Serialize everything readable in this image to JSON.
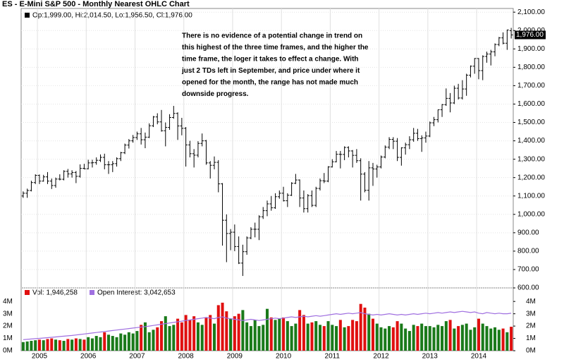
{
  "chart_data": [
    {
      "type": "ohlc",
      "title": "ES - E-Mini S&P 500 - Monthly Nearest OHLC Chart",
      "legend_label": "Op:1,999.00, Hi:2,014.50, Lo:1,956.50, Cl:1,976.00",
      "last_label": "1,976.00",
      "annotation": [
        "There is no evidence of a potential change in trend on",
        "this highest of the three time frames, and the higher the",
        "time frame, the loger it takes to effect a change.  With",
        "just 2 TDs left in September, and price under where it",
        "opened for the month, the range has not made much",
        "downside progress."
      ],
      "color": "#000000",
      "grid": true,
      "categories": [
        null,
        null,
        null,
        null,
        "2005",
        null,
        null,
        null,
        null,
        null,
        null,
        null,
        null,
        null,
        null,
        null,
        "2006",
        null,
        null,
        null,
        null,
        null,
        null,
        null,
        null,
        null,
        null,
        null,
        "2007",
        null,
        null,
        null,
        null,
        null,
        null,
        null,
        null,
        null,
        null,
        null,
        "2008",
        null,
        null,
        null,
        null,
        null,
        null,
        null,
        null,
        null,
        null,
        null,
        "2009",
        null,
        null,
        null,
        null,
        null,
        null,
        null,
        null,
        null,
        null,
        null,
        "2010",
        null,
        null,
        null,
        null,
        null,
        null,
        null,
        null,
        null,
        null,
        null,
        "2011",
        null,
        null,
        null,
        null,
        null,
        null,
        null,
        null,
        null,
        null,
        null,
        "2012",
        null,
        null,
        null,
        null,
        null,
        null,
        null,
        null,
        null,
        null,
        null,
        "2013",
        null,
        null,
        null,
        null,
        null,
        null,
        null,
        null,
        null,
        null,
        null,
        "2014",
        null,
        null,
        null,
        null,
        null,
        null,
        null,
        null
      ],
      "open": [
        1100,
        1115,
        1130,
        1173,
        1212,
        1181,
        1204,
        1181,
        1157,
        1192,
        1191,
        1234,
        1220,
        1228,
        1207,
        1250,
        1248,
        1280,
        1281,
        1294,
        1310,
        1270,
        1270,
        1276,
        1303,
        1335,
        1377,
        1400,
        1418,
        1438,
        1406,
        1420,
        1482,
        1530,
        1503,
        1455,
        1473,
        1527,
        1549,
        1481,
        1468,
        1378,
        1330,
        1322,
        1386,
        1400,
        1280,
        1267,
        1283,
        1166,
        968,
        896,
        903,
        825,
        735,
        797,
        872,
        919,
        919,
        987,
        1020,
        1057,
        1036,
        1096,
        1115,
        1074,
        1104,
        1169,
        1187,
        1089,
        1031,
        1102,
        1049,
        1141,
        1183,
        1181,
        1258,
        1286,
        1327,
        1326,
        1364,
        1345,
        1321,
        1292,
        1219,
        1131,
        1253,
        1247,
        1258,
        1312,
        1366,
        1408,
        1398,
        1310,
        1362,
        1379,
        1406,
        1441,
        1412,
        1416,
        1426,
        1498,
        1515,
        1569,
        1597,
        1631,
        1606,
        1686,
        1633,
        1682,
        1757,
        1806,
        1848,
        1782,
        1859,
        1872,
        1884,
        1924,
        1960,
        1931,
        1999
      ],
      "high": [
        1125,
        1140,
        1183,
        1218,
        1217,
        1215,
        1230,
        1195,
        1200,
        1218,
        1240,
        1247,
        1240,
        1236,
        1272,
        1275,
        1297,
        1297,
        1310,
        1326,
        1330,
        1290,
        1290,
        1310,
        1340,
        1385,
        1410,
        1432,
        1450,
        1470,
        1445,
        1495,
        1535,
        1550,
        1568,
        1500,
        1545,
        1590,
        1555,
        1525,
        1475,
        1400,
        1355,
        1398,
        1440,
        1405,
        1290,
        1315,
        1295,
        1170,
        1000,
        920,
        945,
        880,
        835,
        880,
        930,
        955,
        995,
        1040,
        1075,
        1100,
        1115,
        1130,
        1150,
        1115,
        1175,
        1220,
        1190,
        1130,
        1110,
        1130,
        1150,
        1195,
        1225,
        1262,
        1300,
        1345,
        1345,
        1370,
        1370,
        1350,
        1355,
        1305,
        1230,
        1290,
        1280,
        1270,
        1320,
        1375,
        1420,
        1420,
        1415,
        1365,
        1390,
        1425,
        1470,
        1465,
        1430,
        1450,
        1505,
        1530,
        1570,
        1600,
        1685,
        1660,
        1700,
        1710,
        1730,
        1765,
        1810,
        1850,
        1850,
        1865,
        1885,
        1895,
        1930,
        1965,
        1990,
        2005,
        2014.5
      ],
      "low": [
        1090,
        1090,
        1125,
        1165,
        1165,
        1178,
        1165,
        1138,
        1145,
        1185,
        1185,
        1200,
        1200,
        1170,
        1200,
        1245,
        1245,
        1255,
        1270,
        1285,
        1245,
        1220,
        1230,
        1260,
        1290,
        1328,
        1358,
        1390,
        1405,
        1380,
        1360,
        1415,
        1475,
        1490,
        1450,
        1370,
        1460,
        1520,
        1405,
        1430,
        1260,
        1310,
        1255,
        1310,
        1370,
        1270,
        1195,
        1245,
        1120,
        830,
        740,
        805,
        800,
        730,
        665,
        780,
        865,
        875,
        860,
        975,
        990,
        1020,
        1030,
        1085,
        1070,
        1040,
        1100,
        1165,
        1040,
        1010,
        1010,
        1040,
        1040,
        1130,
        1170,
        1175,
        1255,
        1283,
        1250,
        1295,
        1310,
        1255,
        1280,
        1075,
        1120,
        1075,
        1155,
        1200,
        1250,
        1305,
        1355,
        1355,
        1290,
        1265,
        1325,
        1355,
        1395,
        1400,
        1340,
        1390,
        1420,
        1480,
        1500,
        1530,
        1590,
        1555,
        1600,
        1625,
        1625,
        1645,
        1745,
        1765,
        1735,
        1730,
        1825,
        1810,
        1860,
        1915,
        1925,
        1895,
        1956.5
      ],
      "close": [
        1115,
        1130,
        1173,
        1212,
        1181,
        1204,
        1181,
        1157,
        1192,
        1191,
        1234,
        1220,
        1228,
        1207,
        1250,
        1248,
        1280,
        1281,
        1294,
        1310,
        1270,
        1270,
        1276,
        1303,
        1335,
        1377,
        1400,
        1418,
        1438,
        1406,
        1420,
        1482,
        1530,
        1503,
        1455,
        1473,
        1527,
        1549,
        1481,
        1468,
        1378,
        1330,
        1322,
        1386,
        1400,
        1280,
        1267,
        1283,
        1166,
        968,
        896,
        903,
        825,
        735,
        797,
        872,
        919,
        919,
        987,
        1020,
        1057,
        1036,
        1096,
        1115,
        1074,
        1104,
        1169,
        1187,
        1089,
        1031,
        1102,
        1049,
        1141,
        1183,
        1181,
        1258,
        1286,
        1327,
        1326,
        1364,
        1345,
        1321,
        1292,
        1219,
        1131,
        1253,
        1247,
        1258,
        1312,
        1366,
        1408,
        1398,
        1310,
        1362,
        1379,
        1406,
        1441,
        1412,
        1416,
        1426,
        1498,
        1515,
        1569,
        1597,
        1631,
        1606,
        1686,
        1633,
        1682,
        1757,
        1806,
        1848,
        1782,
        1859,
        1872,
        1884,
        1924,
        1960,
        1931,
        2003,
        1976
      ],
      "ylim": [
        600,
        2120
      ],
      "yticks": [
        {
          "value": 600,
          "label": "600.00"
        },
        {
          "value": 700,
          "label": "700.00"
        },
        {
          "value": 800,
          "label": "800.00"
        },
        {
          "value": 900,
          "label": "900.00"
        },
        {
          "value": 1000,
          "label": "1,000.00"
        },
        {
          "value": 1100,
          "label": "1,100.00"
        },
        {
          "value": 1200,
          "label": "1,200.00"
        },
        {
          "value": 1300,
          "label": "1,300.00"
        },
        {
          "value": 1400,
          "label": "1,400.00"
        },
        {
          "value": 1500,
          "label": "1,500.00"
        },
        {
          "value": 1600,
          "label": "1,600.00"
        },
        {
          "value": 1700,
          "label": "1,700.00"
        },
        {
          "value": 1800,
          "label": "1,800.00"
        },
        {
          "value": 1900,
          "label": "1,900.00"
        },
        {
          "value": 2000,
          "label": "2,000.00"
        },
        {
          "value": 2100,
          "label": "2,100.00"
        }
      ]
    },
    {
      "type": "bar_line",
      "series": [
        {
          "name": "Vol: 1,946,258",
          "type": "bar",
          "color": "#e01010",
          "up_color": "#1a7a1a",
          "values": [
            700000,
            750000,
            800000,
            850000,
            900000,
            850000,
            950000,
            1000000,
            900000,
            850000,
            800000,
            950000,
            900000,
            1000000,
            950000,
            900000,
            1100000,
            1000000,
            1200000,
            1100000,
            1500000,
            1300000,
            1200000,
            1100000,
            1400000,
            1300000,
            1500000,
            1400000,
            1600000,
            2100000,
            2300000,
            1500000,
            1700000,
            1900000,
            2400000,
            2800000,
            2000000,
            2100000,
            2600000,
            2300000,
            2900000,
            2500000,
            2800000,
            2300000,
            2100000,
            2700000,
            2900000,
            2200000,
            3700000,
            3900000,
            3200000,
            2600000,
            2800000,
            3000000,
            3300000,
            2300000,
            2000000,
            2500000,
            2000000,
            2100000,
            3400000,
            2700000,
            2500000,
            2600000,
            2700000,
            2400000,
            2000000,
            2200000,
            3300000,
            2900000,
            2200000,
            2300000,
            2400000,
            2100000,
            2000000,
            2400000,
            2100000,
            2000000,
            2500000,
            1900000,
            2000000,
            2500000,
            2400000,
            3800000,
            3500000,
            3000000,
            2600000,
            2200000,
            1900000,
            1800000,
            2000000,
            1900000,
            2400000,
            2200000,
            1800000,
            1600000,
            2100000,
            2000000,
            2200000,
            2000000,
            2000000,
            1900000,
            2100000,
            2000000,
            2400000,
            2500000,
            1800000,
            2000000,
            2100000,
            2200000,
            1700000,
            1900000,
            2600000,
            2200000,
            2000000,
            1800000,
            1900000,
            1700000,
            1800000,
            1500000,
            1946258
          ]
        },
        {
          "name": "Open Interest: 3,042,653",
          "type": "line",
          "color": "#a070e0",
          "values": [
            900000,
            920000,
            950000,
            980000,
            1000000,
            1030000,
            1060000,
            1090000,
            1120000,
            1150000,
            1180000,
            1210000,
            1240000,
            1280000,
            1320000,
            1360000,
            1400000,
            1440000,
            1480000,
            1520000,
            1560000,
            1600000,
            1640000,
            1680000,
            1720000,
            1760000,
            1800000,
            1840000,
            1880000,
            1920000,
            1960000,
            2000000,
            2050000,
            2100000,
            2150000,
            2200000,
            2250000,
            2300000,
            2350000,
            2400000,
            2450000,
            2500000,
            2550000,
            2600000,
            2650000,
            2700000,
            2650000,
            2600000,
            2700000,
            2750000,
            2650000,
            2600000,
            2550000,
            2500000,
            2450000,
            2500000,
            2550000,
            2500000,
            2450000,
            2500000,
            2550000,
            2600000,
            2650000,
            2600000,
            2650000,
            2700000,
            2750000,
            2700000,
            2750000,
            2800000,
            2750000,
            2800000,
            2850000,
            2800000,
            2850000,
            2900000,
            2950000,
            3000000,
            2950000,
            3000000,
            3050000,
            3000000,
            3050000,
            3100000,
            3000000,
            2950000,
            2900000,
            2950000,
            2900000,
            2950000,
            3000000,
            2950000,
            2900000,
            2950000,
            2900000,
            2950000,
            3000000,
            2950000,
            3000000,
            3050000,
            3000000,
            3050000,
            3100000,
            3050000,
            3100000,
            3150000,
            3100000,
            3150000,
            3200000,
            3150000,
            3100000,
            3150000,
            3050000,
            3000000,
            3100000,
            3050000,
            3000000,
            3050000,
            3000000,
            3000000,
            3042653
          ]
        }
      ],
      "ylim": [
        0,
        5100000
      ],
      "yticks": [
        {
          "value": 0,
          "label": "0M"
        },
        {
          "value": 1000000,
          "label": "1M"
        },
        {
          "value": 2000000,
          "label": "2M"
        },
        {
          "value": 3000000,
          "label": "3M"
        },
        {
          "value": 4000000,
          "label": "4M"
        }
      ]
    }
  ]
}
